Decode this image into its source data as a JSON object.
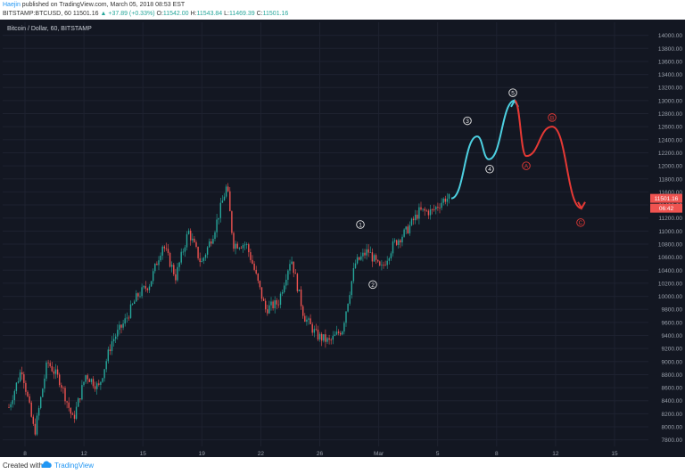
{
  "header": {
    "author": "Haejin",
    "published": " published on TradingView.com, March 05, 2018 08:53 EST",
    "symbol": "BITSTAMP:BTCUSD, 60",
    "price": "11501.16",
    "change": "+37.89 (+0.33%)",
    "o_label": "O:",
    "o_val": "11542.00",
    "h_label": "H:",
    "h_val": "11543.84",
    "l_label": "L:",
    "l_val": "11469.39",
    "c_label": "C:",
    "c_val": "11501.16"
  },
  "footer": {
    "created": "Created with",
    "brand": "TradingView"
  },
  "colors": {
    "background": "#131722",
    "bull": "#26a69a",
    "bear": "#ef5350",
    "cyan_path": "#4dd0e1",
    "red_path": "#e53935",
    "grid": "#1e2230",
    "axis_text": "#9aa0ab"
  },
  "chart_data": {
    "type": "candlestick",
    "title": "Bitcoin / Dollar, 60, BITSTAMP",
    "ylim": [
      7700,
      14200
    ],
    "y_ticks": [
      7800,
      8000,
      8200,
      8400,
      8600,
      8800,
      9000,
      9200,
      9400,
      9600,
      9800,
      10000,
      10200,
      10400,
      10600,
      10800,
      11000,
      11200,
      11400,
      11600,
      11800,
      12000,
      12200,
      12400,
      12600,
      12800,
      13000,
      13200,
      13400,
      13600,
      13800,
      14000
    ],
    "x_ticks": [
      "8",
      "12",
      "15",
      "19",
      "22",
      "26",
      "Mar",
      "5",
      "8",
      "12",
      "15"
    ],
    "last_price_label": "11501.16",
    "last_price": 11501.16,
    "secondary_price_label": "06:42",
    "price_anchors": [
      [
        0,
        8300
      ],
      [
        2,
        8900
      ],
      [
        4,
        7900
      ],
      [
        6,
        9000
      ],
      [
        8,
        8700
      ],
      [
        10,
        8100
      ],
      [
        12,
        8800
      ],
      [
        14,
        8600
      ],
      [
        16,
        9300
      ],
      [
        18,
        9600
      ],
      [
        20,
        10000
      ],
      [
        22,
        10200
      ],
      [
        24,
        10800
      ],
      [
        26,
        10300
      ],
      [
        28,
        11000
      ],
      [
        30,
        10500
      ],
      [
        32,
        11000
      ],
      [
        34,
        11700
      ],
      [
        35,
        10800
      ],
      [
        37,
        10800
      ],
      [
        38,
        10500
      ],
      [
        40,
        9800
      ],
      [
        42,
        9900
      ],
      [
        44,
        10600
      ],
      [
        46,
        9700
      ],
      [
        48,
        9400
      ],
      [
        50,
        9300
      ],
      [
        52,
        9500
      ],
      [
        54,
        10500
      ],
      [
        56,
        10700
      ],
      [
        58,
        10400
      ],
      [
        60,
        10800
      ],
      [
        62,
        11000
      ],
      [
        64,
        11300
      ],
      [
        66,
        11300
      ],
      [
        68,
        11500
      ],
      [
        69,
        11501
      ]
    ],
    "wave_labels": [
      {
        "label": "1",
        "price": 11100,
        "color": "white"
      },
      {
        "label": "2",
        "price": 10180,
        "color": "white"
      },
      {
        "label": "3",
        "price": 12690,
        "color": "white"
      },
      {
        "label": "4",
        "price": 11950,
        "color": "white"
      },
      {
        "label": "5",
        "price": 13120,
        "color": "white"
      },
      {
        "label": "A",
        "price": 12000,
        "color": "red"
      },
      {
        "label": "B",
        "price": 12740,
        "color": "red"
      },
      {
        "label": "C",
        "price": 11130,
        "color": "red"
      }
    ],
    "projection_up": [
      [
        11501,
        0
      ],
      [
        12450,
        1
      ],
      [
        12100,
        2
      ],
      [
        13000,
        3
      ]
    ],
    "projection_down": [
      [
        13000,
        0
      ],
      [
        12150,
        1
      ],
      [
        12600,
        2
      ],
      [
        11350,
        3
      ]
    ]
  }
}
